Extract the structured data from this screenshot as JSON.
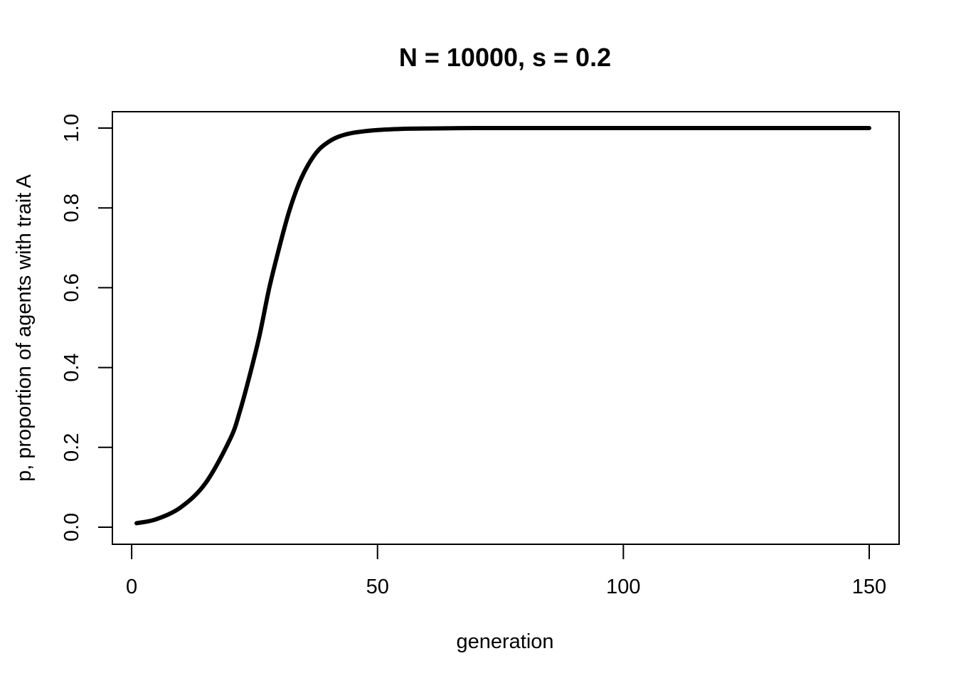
{
  "chart_data": {
    "type": "line",
    "title": "N = 10000, s = 0.2",
    "xlabel": "generation",
    "ylabel": "p, proportion of agents with trait A",
    "xlim": [
      1,
      150
    ],
    "ylim": [
      0.0,
      1.0
    ],
    "x_ticks": [
      0,
      50,
      100,
      150
    ],
    "x_tick_labels": [
      "0",
      "50",
      "100",
      "150"
    ],
    "y_ticks": [
      0.0,
      0.2,
      0.4,
      0.6,
      0.8,
      1.0
    ],
    "y_tick_labels": [
      "0.0",
      "0.2",
      "0.4",
      "0.6",
      "0.8",
      "1.0"
    ],
    "grid": false,
    "line_color": "#000000",
    "series": [
      {
        "x": [
          1,
          5,
          10,
          15,
          20,
          22,
          24,
          26,
          28,
          30,
          32,
          34,
          36,
          38,
          40,
          42,
          45,
          50,
          55,
          60,
          70,
          80,
          100,
          120,
          150
        ],
        "y": [
          0.01,
          0.02,
          0.05,
          0.11,
          0.22,
          0.29,
          0.38,
          0.48,
          0.6,
          0.7,
          0.79,
          0.86,
          0.91,
          0.945,
          0.965,
          0.978,
          0.988,
          0.995,
          0.998,
          0.999,
          1.0,
          1.0,
          1.0,
          1.0,
          1.0
        ]
      }
    ]
  }
}
